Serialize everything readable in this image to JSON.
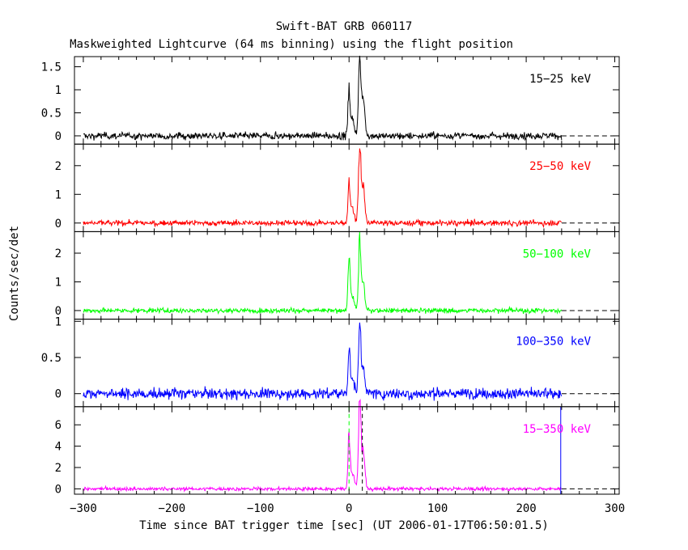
{
  "chart_data": {
    "type": "line",
    "title": "Swift-BAT GRB 060117",
    "subtitle": "Maskweighted Lightcurve (64 ms binning) using the flight position",
    "xlabel": "Time since BAT trigger time [sec] (UT 2006-01-17T06:50:01.5)",
    "ylabel": "Counts/sec/det",
    "xlim": [
      -310,
      305
    ],
    "x_ticks": [
      -300,
      -200,
      -100,
      0,
      100,
      200,
      300
    ],
    "data_range": [
      -300,
      240
    ],
    "grid": false,
    "panels": [
      {
        "label": "15−25 keV",
        "color": "#000000",
        "ylim": [
          -0.18,
          1.72
        ],
        "y_ticks": [
          0,
          0.5,
          1,
          1.5
        ],
        "y_tick_labels": [
          "0",
          "0.5",
          "1",
          "1.5"
        ],
        "noise_amp": 0.055,
        "peaks": [
          {
            "t": 0,
            "h": 0.95,
            "w": 1.2
          },
          {
            "t": 4,
            "h": 0.35,
            "w": 2.0
          },
          {
            "t": 12,
            "h": 1.55,
            "w": 1.4
          },
          {
            "t": 16,
            "h": 0.8,
            "w": 1.8
          }
        ]
      },
      {
        "label": "25−50 keV",
        "color": "#ff0000",
        "ylim": [
          -0.3,
          2.75
        ],
        "y_ticks": [
          0,
          1,
          2
        ],
        "y_tick_labels": [
          "0",
          "1",
          "2"
        ],
        "noise_amp": 0.07,
        "peaks": [
          {
            "t": 0,
            "h": 1.45,
            "w": 1.2
          },
          {
            "t": 4,
            "h": 0.5,
            "w": 2.0
          },
          {
            "t": 12,
            "h": 2.55,
            "w": 1.4
          },
          {
            "t": 16,
            "h": 1.25,
            "w": 1.8
          }
        ]
      },
      {
        "label": "50−100 keV",
        "color": "#00ff00",
        "ylim": [
          -0.3,
          2.75
        ],
        "y_ticks": [
          0,
          1,
          2
        ],
        "y_tick_labels": [
          "0",
          "1",
          "2"
        ],
        "noise_amp": 0.06,
        "peaks": [
          {
            "t": 0,
            "h": 1.95,
            "w": 1.2
          },
          {
            "t": 4,
            "h": 0.45,
            "w": 2.0
          },
          {
            "t": 12,
            "h": 2.35,
            "w": 1.3
          },
          {
            "t": 16,
            "h": 0.95,
            "w": 1.7
          }
        ]
      },
      {
        "label": "100−350 keV",
        "color": "#0000ff",
        "ylim": [
          -0.18,
          1.03
        ],
        "y_ticks": [
          0,
          0.5,
          1
        ],
        "y_tick_labels": [
          "0",
          "0.5",
          "1"
        ],
        "noise_amp": 0.055,
        "peaks": [
          {
            "t": 0,
            "h": 0.62,
            "w": 1.2
          },
          {
            "t": 4,
            "h": 0.2,
            "w": 2.0
          },
          {
            "t": 12,
            "h": 0.98,
            "w": 1.3
          },
          {
            "t": 16,
            "h": 0.4,
            "w": 1.7
          }
        ]
      },
      {
        "label": "15−350 keV",
        "color": "#ff00ff",
        "ylim": [
          -0.5,
          7.7
        ],
        "y_ticks": [
          0,
          2,
          4,
          6
        ],
        "y_tick_labels": [
          "0",
          "2",
          "4",
          "6"
        ],
        "noise_amp": 0.12,
        "peaks": [
          {
            "t": 0,
            "h": 5.0,
            "w": 1.2
          },
          {
            "t": 4,
            "h": 1.5,
            "w": 2.0
          },
          {
            "t": 12,
            "h": 7.6,
            "w": 1.4
          },
          {
            "t": 16,
            "h": 3.5,
            "w": 1.8
          }
        ],
        "markers": [
          {
            "t": 0,
            "color": "#00ff00",
            "style": "dashed"
          },
          {
            "t": 15,
            "color": "#000000",
            "style": "dashed"
          },
          {
            "t": 239,
            "color": "#0000ff",
            "style": "solid"
          }
        ]
      }
    ]
  }
}
